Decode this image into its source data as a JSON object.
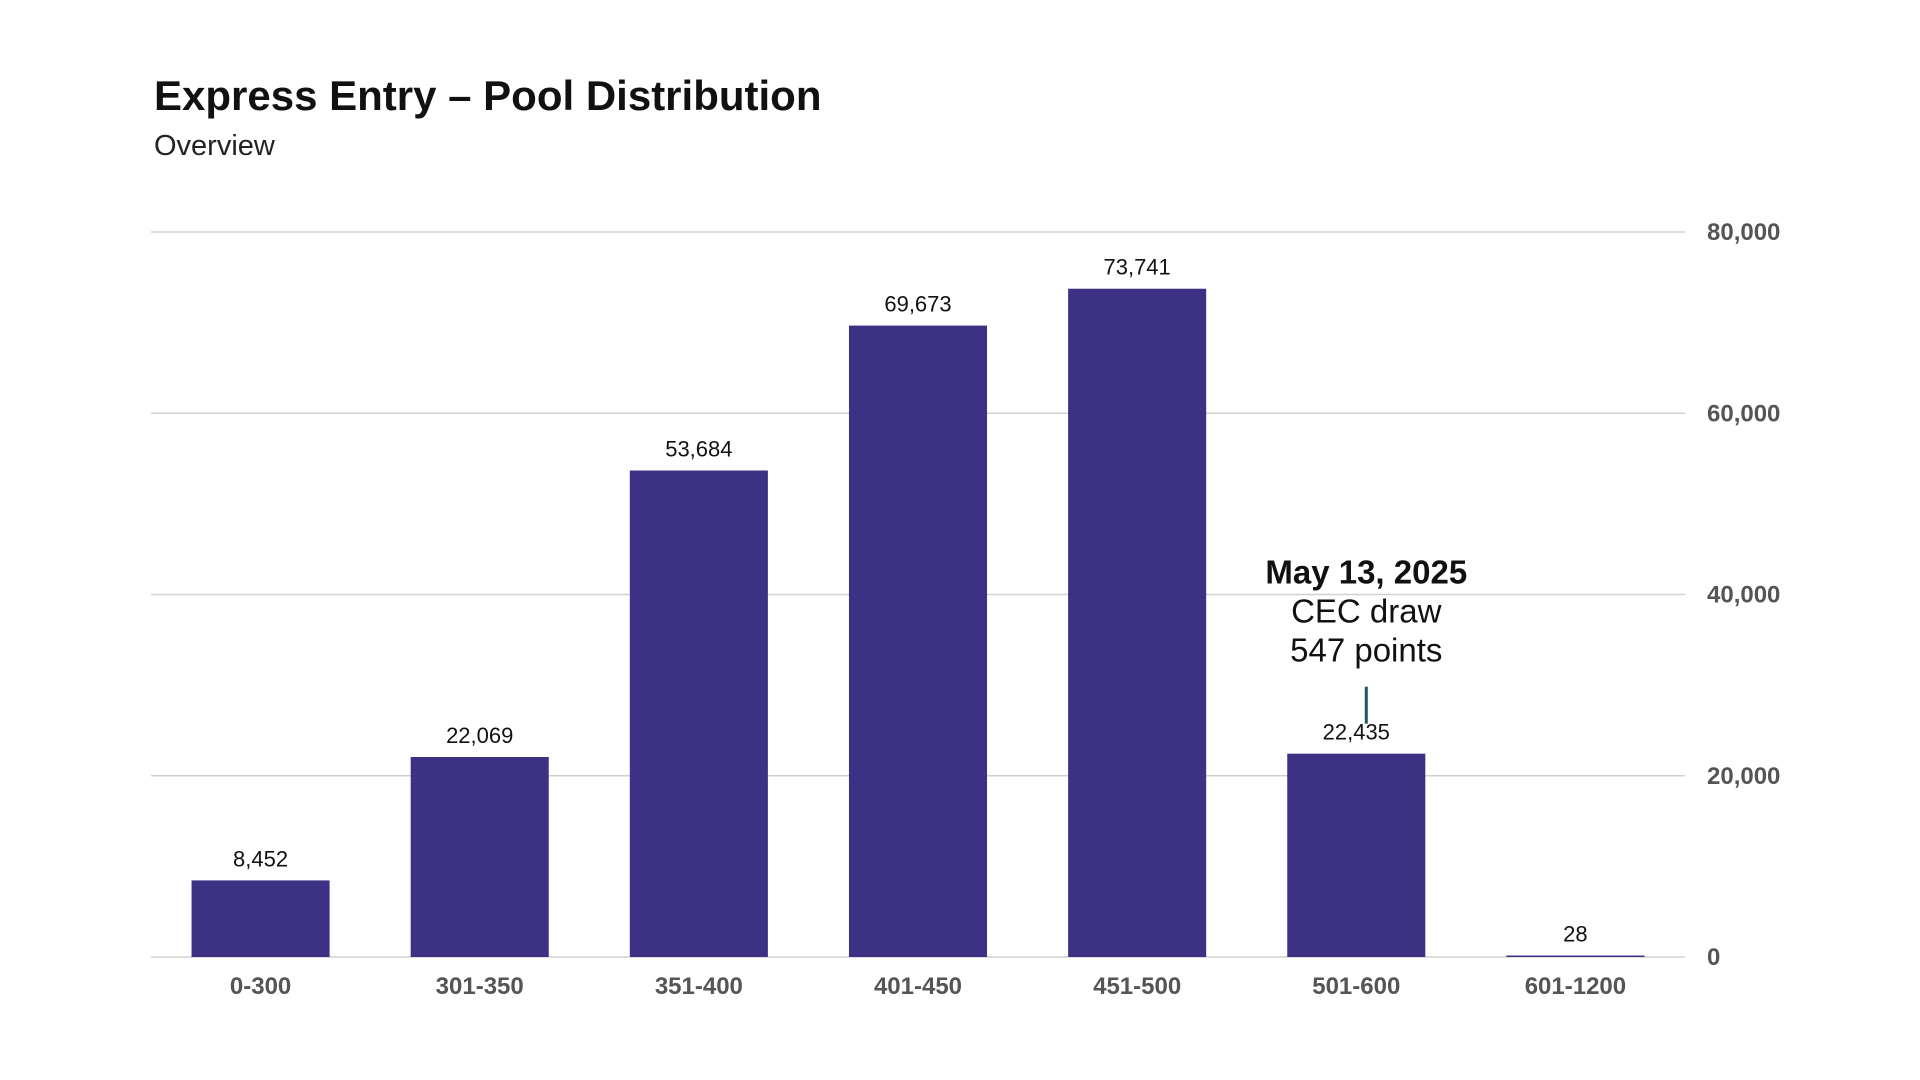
{
  "title": "Express Entry – Pool Distribution",
  "subtitle": "Overview",
  "colors": {
    "bar": "#3d3186",
    "grid": "#d0d0d0",
    "annotation_line": "#1d5860"
  },
  "annotation": {
    "category": "501-600",
    "line1": "May 13, 2025",
    "line2": "CEC draw",
    "line3": "547 points"
  },
  "chart_data": {
    "type": "bar",
    "title": "Express Entry – Pool Distribution",
    "subtitle": "Overview",
    "categories": [
      "0-300",
      "301-350",
      "351-400",
      "401-450",
      "451-500",
      "501-600",
      "601-1200"
    ],
    "values": [
      8452,
      22069,
      53684,
      69673,
      73741,
      22435,
      28
    ],
    "value_labels": [
      "8,452",
      "22,069",
      "53,684",
      "69,673",
      "73,741",
      "22,435",
      "28"
    ],
    "ylim": [
      0,
      80000
    ],
    "yticks": [
      0,
      20000,
      40000,
      60000,
      80000
    ],
    "ytick_labels": [
      "0",
      "20,000",
      "40,000",
      "60,000",
      "80,000"
    ],
    "y_axis_side": "right",
    "grid": true,
    "legend": "none"
  }
}
